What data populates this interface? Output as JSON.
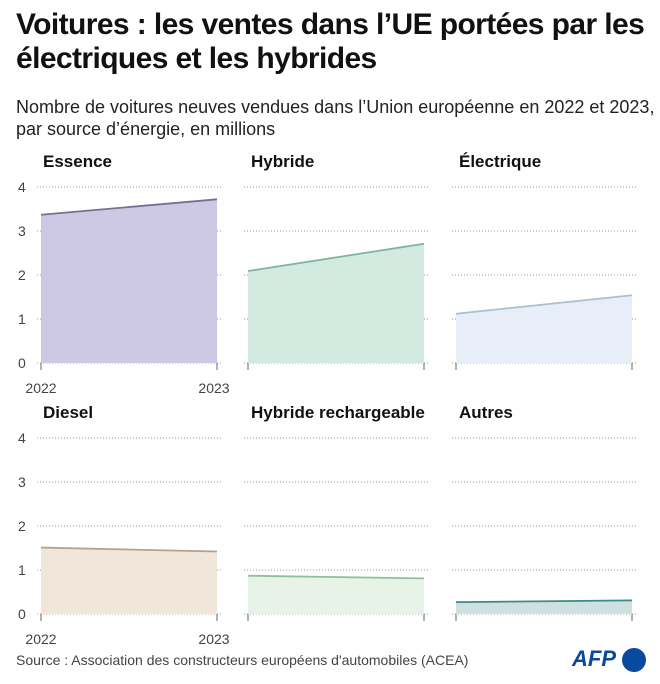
{
  "title": "Voitures : les ventes dans l’UE portées par les électriques et les hybrides",
  "subtitle": "Nombre de voitures neuves vendues dans l’Union européenne en 2022 et 2023, par source d’énergie, en millions",
  "source": "Source : Association des constructeurs européens d'automobiles (ACEA)",
  "logo": "AFP",
  "chart_data": [
    {
      "type": "area",
      "title": "Essence",
      "x": [
        "2022",
        "2023"
      ],
      "values": [
        3.37,
        3.72
      ],
      "ylim": [
        0,
        4
      ],
      "yticks": [
        "0",
        "1",
        "2",
        "3",
        "4"
      ],
      "grid": true,
      "fill": "#cdc8e4",
      "line": "#7a6e96"
    },
    {
      "type": "area",
      "title": "Hybride",
      "x": [
        "2022",
        "2023"
      ],
      "values": [
        2.09,
        2.71
      ],
      "ylim": [
        0,
        4
      ],
      "grid": true,
      "fill": "#d2eadf",
      "line": "#7fb5a0"
    },
    {
      "type": "area",
      "title": "Électrique",
      "x": [
        "2022",
        "2023"
      ],
      "values": [
        1.12,
        1.54
      ],
      "ylim": [
        0,
        4
      ],
      "grid": true,
      "fill": "#e8eef7",
      "line": "#a9c0cf"
    },
    {
      "type": "area",
      "title": "Diesel",
      "x": [
        "2022",
        "2023"
      ],
      "values": [
        1.51,
        1.42
      ],
      "ylim": [
        0,
        4
      ],
      "yticks": [
        "0",
        "1",
        "2",
        "3",
        "4"
      ],
      "grid": true,
      "fill": "#f0e6da",
      "line": "#b3a38c"
    },
    {
      "type": "area",
      "title": "Hybride rechargeable",
      "x": [
        "2022",
        "2023"
      ],
      "values": [
        0.87,
        0.81
      ],
      "ylim": [
        0,
        4
      ],
      "grid": true,
      "fill": "#e6f3e6",
      "line": "#8fc09a"
    },
    {
      "type": "area",
      "title": "Autres",
      "x": [
        "2022",
        "2023"
      ],
      "values": [
        0.27,
        0.31
      ],
      "ylim": [
        0,
        4
      ],
      "grid": true,
      "fill": "#cfe0e0",
      "line": "#3d8a88"
    }
  ]
}
